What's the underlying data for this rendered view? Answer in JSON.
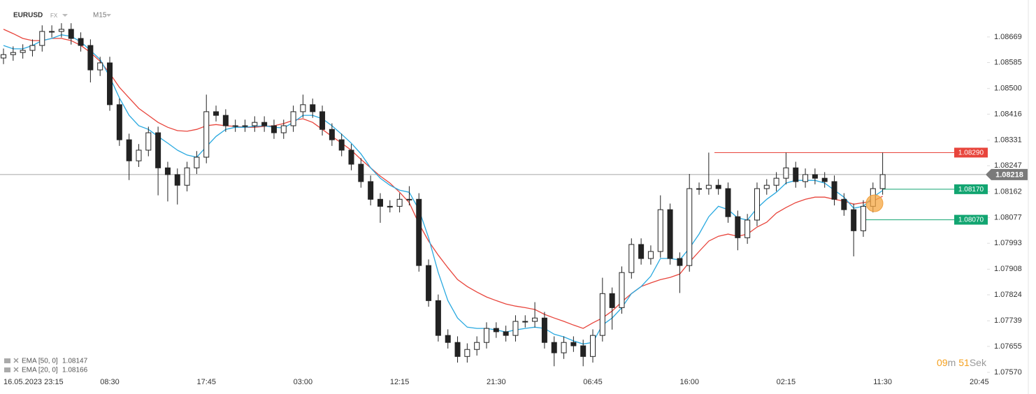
{
  "chart_data": {
    "type": "candlestick",
    "symbol": "EURUSD",
    "market": "FX",
    "interval": "M15",
    "categories": [
      null,
      "16.05.2023  23:15",
      null,
      null,
      null,
      null,
      null,
      null,
      null,
      null,
      null,
      "08:30",
      null,
      null,
      null,
      null,
      null,
      null,
      null,
      null,
      null,
      "17:45",
      null,
      null,
      null,
      null,
      null,
      null,
      null,
      null,
      null,
      "03:00",
      null,
      null,
      null,
      null,
      null,
      null,
      null,
      null,
      null,
      "12:15",
      null,
      null,
      null,
      null,
      null,
      null,
      null,
      null,
      null,
      "21:30",
      null,
      null,
      null,
      null,
      null,
      null,
      null,
      null,
      null,
      "06:45",
      null,
      null,
      null,
      null,
      null,
      null,
      null,
      null,
      null,
      "16:00",
      null,
      null,
      null,
      null,
      null,
      null,
      null,
      null,
      null,
      "02:15",
      null,
      null,
      null,
      null,
      null,
      null,
      null,
      null,
      null,
      "11:30",
      null,
      null,
      null,
      null,
      null,
      null,
      null,
      null,
      null,
      "20:45"
    ],
    "open": [
      1.086,
      1.08611,
      1.08618,
      1.08625,
      1.08641,
      1.08687,
      1.08687,
      1.08694,
      1.08664,
      1.08641,
      1.08561,
      1.08584,
      1.08447,
      1.08332,
      1.08263,
      1.08298,
      1.08355,
      1.0824,
      1.08218,
      1.08183,
      1.0824,
      1.08275,
      1.08424,
      1.08412,
      1.08378,
      1.08378,
      1.08378,
      1.08389,
      1.08378,
      1.08355,
      1.08378,
      1.08424,
      1.08447,
      1.08424,
      1.08366,
      1.08332,
      1.08298,
      1.08252,
      1.08195,
      1.08137,
      1.08114,
      1.08114,
      1.08137,
      1.08137,
      1.0792,
      1.07805,
      1.07691,
      1.07668,
      1.07622,
      1.07645,
      1.07668,
      1.07714,
      1.07703,
      1.07691,
      1.07737,
      1.07737,
      1.07748,
      1.07668,
      1.07634,
      1.07668,
      1.07657,
      1.07622,
      1.07691,
      1.07828,
      1.07782,
      1.07897,
      1.07989,
      1.07943,
      1.07966,
      1.08103,
      1.07943,
      1.0792,
      1.08172,
      1.08172,
      1.08183,
      1.08172,
      1.0808,
      1.08011,
      1.08069,
      1.08172,
      1.08183,
      1.08206,
      1.0824,
      1.08195,
      1.08218,
      1.08206,
      1.08195,
      1.08137,
      1.08103,
      1.08034,
      1.08114,
      1.08172,
      null,
      null,
      null,
      null,
      null,
      null,
      null,
      null,
      null,
      null
    ],
    "high": [
      1.08631,
      1.08638,
      1.08645,
      1.08661,
      1.08707,
      1.08707,
      1.08714,
      1.08714,
      1.08684,
      1.08661,
      1.08604,
      1.08604,
      1.08467,
      1.08352,
      1.08318,
      1.08375,
      1.08375,
      1.0826,
      1.08238,
      1.0826,
      1.08295,
      1.0848,
      1.08444,
      1.08432,
      1.08398,
      1.08398,
      1.08409,
      1.08409,
      1.08398,
      1.08398,
      1.08444,
      1.0848,
      1.08467,
      1.08444,
      1.08386,
      1.08352,
      1.08318,
      1.08272,
      1.08215,
      1.08157,
      1.08134,
      1.08157,
      1.0818,
      1.08157,
      1.0794,
      1.07825,
      1.07711,
      1.07688,
      1.07665,
      1.07688,
      1.07734,
      1.07734,
      1.07723,
      1.07757,
      1.07757,
      1.078,
      1.07768,
      1.07688,
      1.07688,
      1.07688,
      1.07677,
      1.07711,
      1.0788,
      1.07848,
      1.07917,
      1.08009,
      1.08009,
      1.07986,
      1.0815,
      1.08123,
      1.07963,
      1.0822,
      1.08192,
      1.0829,
      1.08203,
      1.08192,
      1.081,
      1.08089,
      1.08192,
      1.08203,
      1.08226,
      1.0829,
      1.0826,
      1.08238,
      1.08238,
      1.08226,
      1.08215,
      1.08157,
      1.08123,
      1.08134,
      1.08192,
      1.0829,
      null,
      null,
      null,
      null,
      null,
      null,
      null,
      null,
      null,
      null
    ],
    "low": [
      1.0858,
      1.08591,
      1.08598,
      1.08605,
      1.08621,
      1.08667,
      1.08667,
      1.08644,
      1.08621,
      1.0852,
      1.08541,
      1.08427,
      1.08312,
      1.082,
      1.08243,
      1.08278,
      1.0815,
      1.0813,
      1.0812,
      1.08163,
      1.0822,
      1.08255,
      1.08392,
      1.08358,
      1.08358,
      1.08358,
      1.08358,
      1.08358,
      1.08335,
      1.08335,
      1.08358,
      1.08404,
      1.08404,
      1.08346,
      1.08312,
      1.08278,
      1.08232,
      1.08175,
      1.08117,
      1.0806,
      1.08094,
      1.08094,
      1.08117,
      1.079,
      1.07785,
      1.07671,
      1.07648,
      1.07602,
      1.07602,
      1.07625,
      1.07648,
      1.07683,
      1.07671,
      1.07671,
      1.07717,
      1.07717,
      1.07648,
      1.0759,
      1.07614,
      1.07637,
      1.0759,
      1.07602,
      1.07671,
      1.0771,
      1.07762,
      1.07877,
      1.07923,
      1.07923,
      1.07946,
      1.07923,
      1.0783,
      1.079,
      1.08152,
      1.08152,
      1.08152,
      1.0806,
      1.0797,
      1.07991,
      1.08049,
      1.08152,
      1.08163,
      1.08186,
      1.08175,
      1.08175,
      1.08186,
      1.08175,
      1.08117,
      1.08083,
      1.0795,
      1.08014,
      1.08094,
      1.08152,
      null,
      null,
      null,
      null,
      null,
      null,
      null,
      null,
      null,
      null
    ],
    "close": [
      1.08611,
      1.08618,
      1.08625,
      1.08641,
      1.08687,
      1.08687,
      1.08694,
      1.08664,
      1.08641,
      1.08561,
      1.08584,
      1.08447,
      1.08332,
      1.08263,
      1.08298,
      1.08355,
      1.0824,
      1.08218,
      1.08183,
      1.0824,
      1.08275,
      1.08424,
      1.08412,
      1.08378,
      1.08378,
      1.08378,
      1.08389,
      1.08378,
      1.08355,
      1.08378,
      1.08424,
      1.08447,
      1.08424,
      1.08366,
      1.08332,
      1.08298,
      1.08252,
      1.08195,
      1.08137,
      1.08114,
      1.08114,
      1.08137,
      1.08137,
      1.0792,
      1.07805,
      1.07691,
      1.07668,
      1.07622,
      1.07645,
      1.07668,
      1.07714,
      1.07703,
      1.07691,
      1.07737,
      1.07737,
      1.07748,
      1.07668,
      1.07634,
      1.07668,
      1.07657,
      1.07622,
      1.07691,
      1.07828,
      1.07782,
      1.07897,
      1.07989,
      1.07943,
      1.07966,
      1.08103,
      1.07943,
      1.0792,
      1.08172,
      1.08172,
      1.08183,
      1.08172,
      1.0808,
      1.08011,
      1.08069,
      1.08172,
      1.08183,
      1.08206,
      1.0824,
      1.08195,
      1.08218,
      1.08206,
      1.08195,
      1.08137,
      1.08103,
      1.08034,
      1.08114,
      1.08172,
      1.08218,
      null,
      null,
      null,
      null,
      null,
      null,
      null,
      null,
      null,
      null
    ],
    "series": [
      {
        "name": "EMA [50, 0]",
        "color": "#e8453c",
        "legend_value": 1.08147,
        "values": [
          1.08694,
          1.0868,
          1.08664,
          1.08657,
          1.08657,
          1.08664,
          1.08664,
          1.08657,
          1.08641,
          1.08618,
          1.08589,
          1.0855,
          1.08504,
          1.08469,
          1.08435,
          1.08412,
          1.08389,
          1.08373,
          1.08362,
          1.0836,
          1.08366,
          1.08378,
          1.08382,
          1.08378,
          1.08376,
          1.08373,
          1.08373,
          1.08376,
          1.08378,
          1.08385,
          1.08396,
          1.08401,
          1.08389,
          1.08366,
          1.08343,
          1.08321,
          1.08298,
          1.08268,
          1.0824,
          1.08213,
          1.0819,
          1.0816,
          1.08126,
          1.08057,
          1.08,
          1.07954,
          1.07913,
          1.07874,
          1.07851,
          1.07833,
          1.07817,
          1.07805,
          1.07794,
          1.07787,
          1.07782,
          1.07776,
          1.0776,
          1.07748,
          1.07737,
          1.07725,
          1.07714,
          1.07732,
          1.07748,
          1.07771,
          1.07801,
          1.07828,
          1.07851,
          1.07863,
          1.07874,
          1.07881,
          1.07892,
          1.07931,
          1.07966,
          1.08,
          1.08016,
          1.08023,
          1.08016,
          1.08023,
          1.08046,
          1.08062,
          1.08092,
          1.0811,
          1.08126,
          1.08137,
          1.08144,
          1.08144,
          1.08137,
          1.08131,
          1.08121,
          1.08126,
          1.08131,
          1.08147,
          null,
          null,
          null,
          null,
          null,
          null,
          null,
          null,
          null,
          null
        ]
      },
      {
        "name": "EMA [20, 0]",
        "color": "#29a9e0",
        "legend_value": 1.08166,
        "values": [
          1.08641,
          1.0863,
          1.0863,
          1.08641,
          1.08657,
          1.08664,
          1.08676,
          1.08671,
          1.08653,
          1.08625,
          1.08595,
          1.08538,
          1.08469,
          1.08412,
          1.08378,
          1.08366,
          1.08343,
          1.08321,
          1.08298,
          1.08282,
          1.08275,
          1.08309,
          1.08343,
          1.08366,
          1.08373,
          1.08373,
          1.08376,
          1.08378,
          1.08373,
          1.08371,
          1.08389,
          1.08412,
          1.08412,
          1.08401,
          1.08378,
          1.0835,
          1.08321,
          1.08286,
          1.0824,
          1.08206,
          1.08183,
          1.08167,
          1.0816,
          1.08103,
          1.08011,
          1.07897,
          1.07805,
          1.07748,
          1.07718,
          1.07714,
          1.07714,
          1.07709,
          1.07702,
          1.07709,
          1.07714,
          1.07718,
          1.07714,
          1.07695,
          1.07686,
          1.07673,
          1.07663,
          1.07668,
          1.07725,
          1.07748,
          1.07782,
          1.07828,
          1.07851,
          1.07885,
          1.07943,
          1.07943,
          1.07938,
          1.07977,
          1.08023,
          1.0808,
          1.08114,
          1.08103,
          1.08076,
          1.08069,
          1.08108,
          1.08137,
          1.0816,
          1.0819,
          1.08199,
          1.08199,
          1.08199,
          1.0819,
          1.08167,
          1.08144,
          1.08108,
          1.08114,
          1.08144,
          1.08166,
          null,
          null,
          null,
          null,
          null,
          null,
          null,
          null,
          null,
          null
        ]
      }
    ],
    "ylim": [
      1.07554,
      1.0879
    ],
    "yticks": [
      1.08669,
      1.08585,
      {
        "value": 1.085,
        "label": "1.08500"
      },
      1.08416,
      1.08331,
      1.08247,
      1.08162,
      1.08077,
      1.07993,
      1.07908,
      1.07824,
      1.07739,
      1.07655,
      {
        "value": 1.0757,
        "label": "1.07570"
      }
    ],
    "grid": false,
    "current_price": 1.08218,
    "levels": [
      {
        "value": 1.0829,
        "label": "1.08290",
        "color": "#e8453c"
      },
      {
        "value": 1.0817,
        "label": "1.08170",
        "color": "#12a571"
      },
      {
        "value": 1.0807,
        "label": "1.08070",
        "color": "#12a571"
      }
    ],
    "countdown": {
      "minutes": "09",
      "minutes_unit": "m",
      "seconds": "51",
      "seconds_unit": "Sek"
    }
  }
}
